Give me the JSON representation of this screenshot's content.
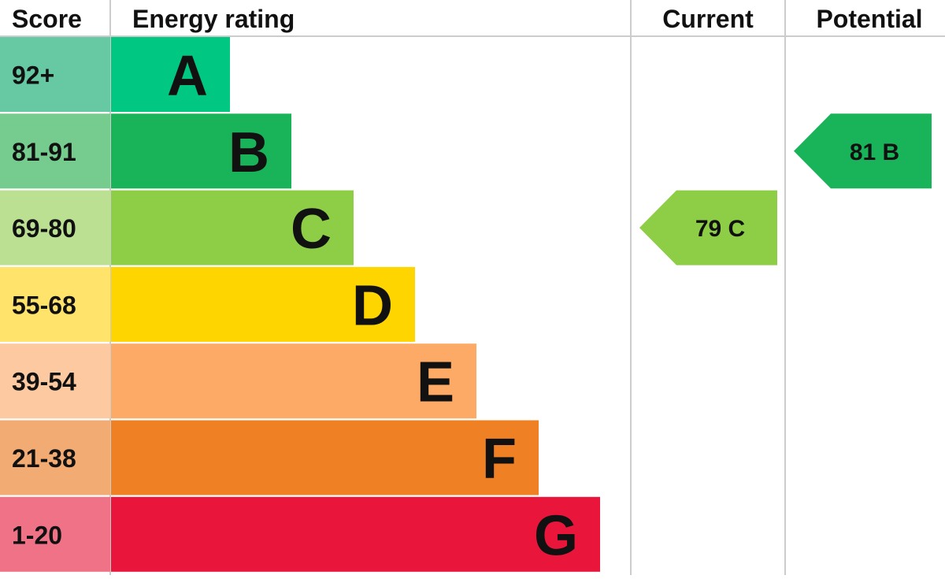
{
  "chart_data": {
    "type": "bar",
    "headers": {
      "score": "Score",
      "rating": "Energy rating",
      "current": "Current",
      "potential": "Potential"
    },
    "bands": [
      {
        "letter": "A",
        "range": "92+",
        "color": "#00c781",
        "score_color": "#66c9a4"
      },
      {
        "letter": "B",
        "range": "81-91",
        "color": "#19b459",
        "score_color": "#75cc8e"
      },
      {
        "letter": "C",
        "range": "69-80",
        "color": "#8dce46",
        "score_color": "#bbe092"
      },
      {
        "letter": "D",
        "range": "55-68",
        "color": "#ffd500",
        "score_color": "#ffe36a"
      },
      {
        "letter": "E",
        "range": "39-54",
        "color": "#fcaa65",
        "score_color": "#fcc9a0"
      },
      {
        "letter": "F",
        "range": "21-38",
        "color": "#ef8023",
        "score_color": "#f2ab72"
      },
      {
        "letter": "G",
        "range": "1-20",
        "color": "#e9153b",
        "score_color": "#f07287"
      }
    ],
    "current": {
      "value": 79,
      "band": "C",
      "label": "79  C",
      "color": "#8dce46"
    },
    "potential": {
      "value": 81,
      "band": "B",
      "label": "81  B",
      "color": "#19b459"
    }
  }
}
